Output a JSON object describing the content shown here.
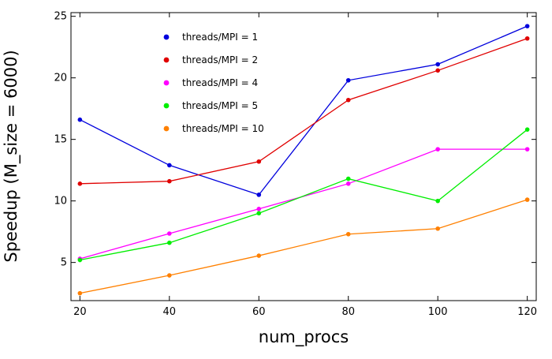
{
  "chart_data": {
    "type": "line",
    "xlabel": "num_procs",
    "ylabel": "Speedup (M_size = 6000)",
    "xlim": [
      18,
      122
    ],
    "ylim": [
      1.9,
      25.3
    ],
    "x_ticks": [
      20,
      40,
      60,
      80,
      100,
      120
    ],
    "y_ticks": [
      5,
      10,
      15,
      20,
      25
    ],
    "grid": false,
    "legend_position": "top-left",
    "x": [
      20,
      40,
      60,
      80,
      100,
      120
    ],
    "series": [
      {
        "name": "threads/MPI = 1",
        "color": "#0000dd",
        "values": [
          16.6,
          12.9,
          10.5,
          19.8,
          21.1,
          24.2
        ]
      },
      {
        "name": "threads/MPI = 2",
        "color": "#e00000",
        "values": [
          11.4,
          11.6,
          13.2,
          18.2,
          20.6,
          23.2
        ]
      },
      {
        "name": "threads/MPI = 4",
        "color": "#ff00ff",
        "values": [
          5.3,
          7.35,
          9.35,
          11.4,
          14.2,
          14.2
        ]
      },
      {
        "name": "threads/MPI = 5",
        "color": "#00ee00",
        "values": [
          5.2,
          6.6,
          9.0,
          11.8,
          10.0,
          15.8
        ]
      },
      {
        "name": "threads/MPI = 10",
        "color": "#ff8000",
        "values": [
          2.5,
          3.95,
          5.55,
          7.3,
          7.75,
          10.1
        ]
      }
    ]
  }
}
